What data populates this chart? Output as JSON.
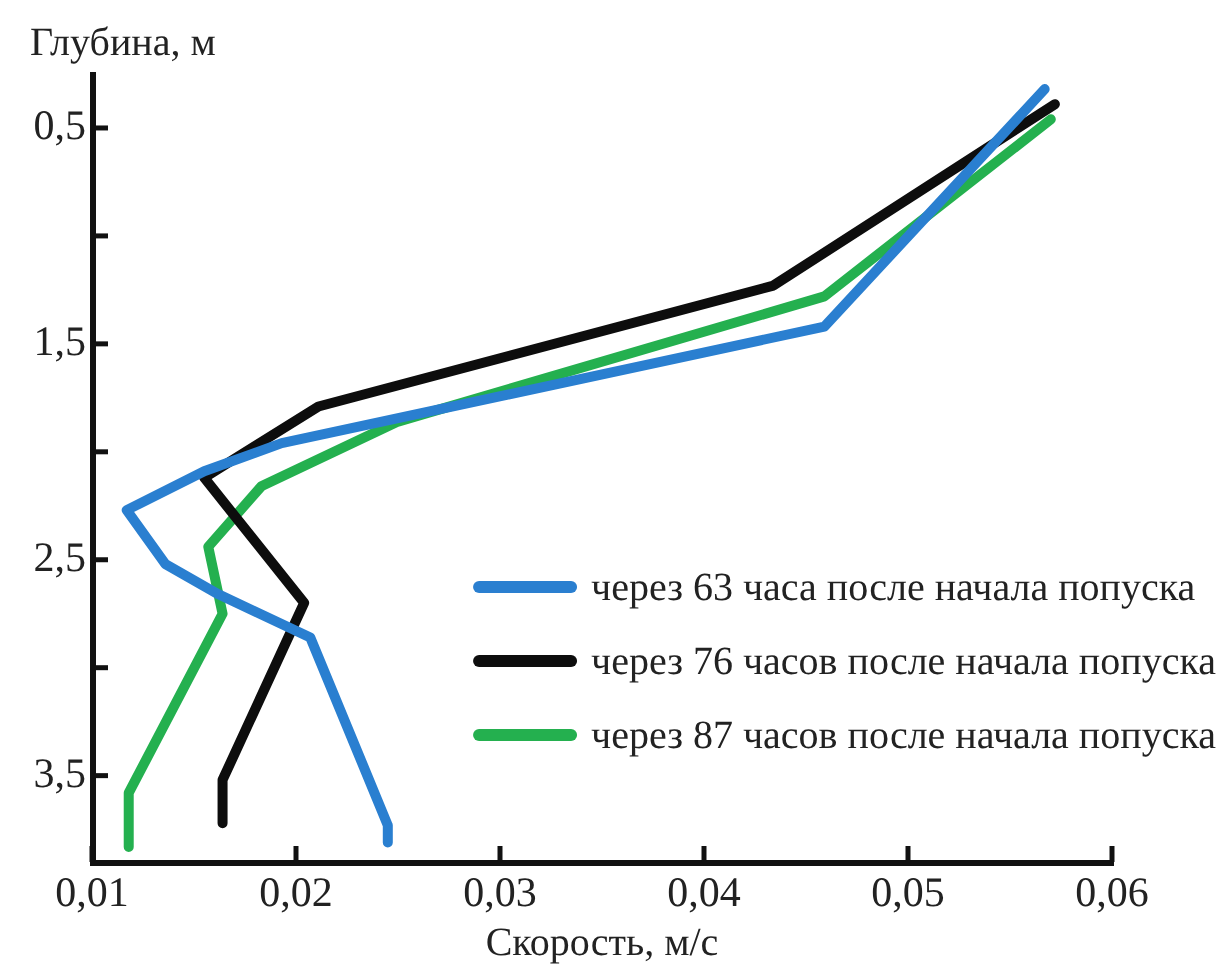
{
  "chart_data": {
    "type": "line",
    "xlabel": "Скорость, м/с",
    "ylabel": "Глубина, м",
    "legend": "bottom right",
    "xlim": [
      0.01,
      0.06
    ],
    "xticks": [
      {
        "value": 0.01,
        "label": "0,01"
      },
      {
        "value": 0.02,
        "label": "0,02"
      },
      {
        "value": 0.03,
        "label": "0,03"
      },
      {
        "value": 0.04,
        "label": "0,04"
      },
      {
        "value": 0.05,
        "label": "0,05"
      },
      {
        "value": 0.06,
        "label": "0,06"
      }
    ],
    "ylim": [
      3.9,
      0.25
    ],
    "yticks": [
      {
        "value": 0.5,
        "label": "0,5"
      },
      {
        "value": 1,
        "label": null
      },
      {
        "value": 1.5,
        "label": "1,5"
      },
      {
        "value": 2,
        "label": null
      },
      {
        "value": 2.5,
        "label": "2,5"
      },
      {
        "value": 3,
        "label": null
      },
      {
        "value": 3.5,
        "label": "3,5"
      }
    ],
    "series": [
      {
        "name": "через 63 часа после начала попуска",
        "color": "#2a7fd0",
        "x": [
          0.0567,
          0.0459,
          0.0193,
          0.0155,
          0.0117,
          0.0136,
          0.0162,
          0.0207,
          0.0245,
          0.0245
        ],
        "values": [
          0.32,
          1.42,
          1.96,
          2.09,
          2.27,
          2.52,
          2.66,
          2.86,
          3.73,
          3.81
        ]
      },
      {
        "name": "через 76 часов после начала попуска",
        "color": "#0d0d0d",
        "x": [
          0.0572,
          0.0434,
          0.0211,
          0.0155,
          0.0204,
          0.0164,
          0.0164
        ],
        "values": [
          0.39,
          1.23,
          1.79,
          2.12,
          2.7,
          3.52,
          3.72
        ]
      },
      {
        "name": "через 87 часов после начала попуска",
        "color": "#24b04f",
        "x": [
          0.057,
          0.0459,
          0.025,
          0.0183,
          0.0157,
          0.0164,
          0.0118,
          0.0118
        ],
        "values": [
          0.46,
          1.28,
          1.86,
          2.16,
          2.44,
          2.75,
          3.58,
          3.83
        ]
      }
    ]
  }
}
